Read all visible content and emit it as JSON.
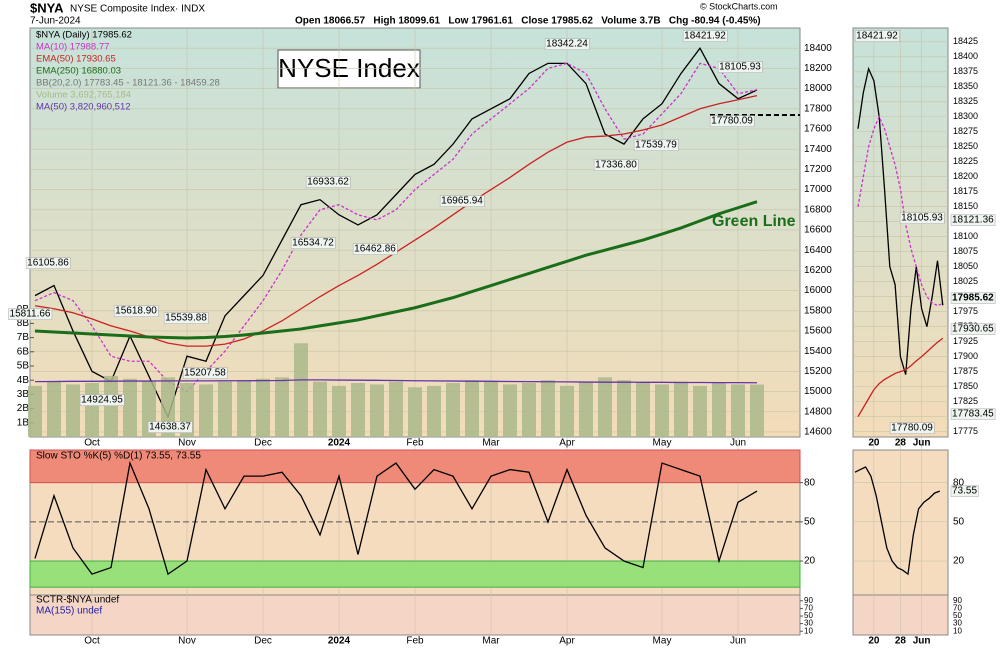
{
  "header": {
    "symbol": "$NYA",
    "name": "NYSE Composite Index· INDX",
    "date": "7-Jun-2024",
    "quote": "Open 18066.57   High 18099.61   Low 17961.61   Close 17985.62   Volume 3.7B   Chg -80.94 (-0.45%)",
    "source": "© StockCharts.com"
  },
  "chart_data": [
    {
      "type": "line",
      "title": "NYSE Index",
      "annotation": "Green Line",
      "bb_legend": "BB(20,2.0) 17783.45 - 18121.36 - 18459.28",
      "categories": [
        null,
        null,
        null,
        "Oct",
        null,
        null,
        null,
        null,
        "Nov",
        null,
        null,
        null,
        "Dec",
        null,
        null,
        null,
        "2024",
        null,
        null,
        null,
        "Feb",
        null,
        null,
        null,
        "Mar",
        null,
        null,
        null,
        "Apr",
        null,
        null,
        null,
        null,
        "May",
        null,
        null,
        null,
        "Jun",
        null
      ],
      "series": [
        {
          "name": "$NYA (Daily) 17985.62",
          "color": "#000000",
          "values": [
            15950,
            16050,
            15600,
            15200,
            15100,
            15550,
            15150,
            14750,
            15350,
            15300,
            15750,
            15950,
            16150,
            16500,
            16850,
            16900,
            16750,
            16650,
            16750,
            16950,
            17150,
            17250,
            17450,
            17700,
            17800,
            17900,
            18150,
            18250,
            18250,
            18050,
            17550,
            17450,
            17700,
            17850,
            18150,
            18400,
            18050,
            17900,
            17985.62
          ]
        },
        {
          "name": "MA(10) 17988.77",
          "color": "#cc33cc",
          "dash": true,
          "values": [
            15900,
            15980,
            15900,
            15650,
            15350,
            15300,
            15300,
            15100,
            15000,
            15200,
            15400,
            15650,
            15900,
            16200,
            16550,
            16800,
            16850,
            16750,
            16700,
            16800,
            17000,
            17150,
            17300,
            17550,
            17700,
            17850,
            18000,
            18200,
            18250,
            18150,
            17800,
            17500,
            17550,
            17750,
            17950,
            18250,
            18200,
            17950,
            17988.77
          ]
        },
        {
          "name": "EMA(50) 17930.65",
          "color": "#cc2222",
          "values": [
            15850,
            15820,
            15780,
            15720,
            15650,
            15600,
            15540,
            15480,
            15450,
            15450,
            15470,
            15520,
            15600,
            15700,
            15820,
            15940,
            16050,
            16150,
            16260,
            16380,
            16500,
            16620,
            16750,
            16880,
            17000,
            17120,
            17250,
            17370,
            17470,
            17520,
            17530,
            17550,
            17590,
            17640,
            17720,
            17800,
            17850,
            17890,
            17930.65
          ]
        },
        {
          "name": "EMA(250) 16880.03",
          "color": "#1a6e1a",
          "width": 3,
          "values": [
            15600,
            15590,
            15580,
            15570,
            15560,
            15550,
            15540,
            15535,
            15530,
            15535,
            15545,
            15560,
            15580,
            15600,
            15620,
            15650,
            15680,
            15710,
            15750,
            15790,
            15830,
            15880,
            15930,
            15990,
            16050,
            16110,
            16170,
            16230,
            16290,
            16350,
            16400,
            16450,
            16500,
            16560,
            16620,
            16690,
            16760,
            16820,
            16880.03
          ]
        },
        {
          "name": "Volume 3,692,765,184",
          "color": "#a9b98a",
          "type": "bar",
          "axis": "y2",
          "values": [
            3600000000,
            3900000000,
            3700000000,
            3800000000,
            4300000000,
            4100000000,
            3900000000,
            4200000000,
            3800000000,
            3700000000,
            3900000000,
            4000000000,
            4100000000,
            4200000000,
            6600000000,
            3900000000,
            3600000000,
            3800000000,
            3700000000,
            3900000000,
            3500000000,
            3600000000,
            3800000000,
            4000000000,
            3900000000,
            3700000000,
            3800000000,
            4000000000,
            3600000000,
            3900000000,
            4200000000,
            4000000000,
            3800000000,
            3700000000,
            3900000000,
            3600000000,
            3800000000,
            3700000000,
            3692765184
          ]
        },
        {
          "name": "MA(50) 3,820,960,512",
          "color": "#6633aa",
          "axis": "y2",
          "values": [
            3900000000,
            3910000000,
            3920000000,
            3920000000,
            3930000000,
            3940000000,
            3940000000,
            3950000000,
            3950000000,
            3950000000,
            3960000000,
            3960000000,
            3970000000,
            3980000000,
            4020000000,
            4020000000,
            4010000000,
            4000000000,
            3990000000,
            3980000000,
            3960000000,
            3950000000,
            3940000000,
            3930000000,
            3920000000,
            3910000000,
            3900000000,
            3890000000,
            3880000000,
            3870000000,
            3860000000,
            3860000000,
            3850000000,
            3850000000,
            3840000000,
            3840000000,
            3830000000,
            3830000000,
            3820960512
          ]
        }
      ],
      "annotations": [
        "16105.86",
        "15811.66",
        "15618.90",
        "14924.95",
        "15539.88",
        "15207.58",
        "14638.37",
        "16933.62",
        "16534.72",
        "16462.86",
        "16965.94",
        "18342.24",
        "17336.80",
        "17539.79",
        "18421.92",
        "18105.93",
        "17780.09"
      ],
      "ylim": [
        14550,
        18600
      ],
      "yticks": [
        14600,
        14800,
        15000,
        15200,
        15400,
        15600,
        15800,
        16000,
        16200,
        16400,
        16600,
        16800,
        17000,
        17200,
        17400,
        17600,
        17800,
        18000,
        18200,
        18400
      ],
      "y2lim": [
        0,
        28800000000
      ],
      "y2ticks": [
        {
          "value": 1000000000,
          "label": "1B"
        },
        {
          "value": 2000000000,
          "label": "2B"
        },
        {
          "value": 3000000000,
          "label": "3B"
        },
        {
          "value": 4000000000,
          "label": "4B"
        },
        {
          "value": 5000000000,
          "label": "5B"
        },
        {
          "value": 6000000000,
          "label": "6B"
        },
        {
          "value": 7000000000,
          "label": "7B"
        },
        {
          "value": 8000000000,
          "label": "8B"
        },
        {
          "value": 9000000000,
          "label": "9B"
        }
      ],
      "grid": true
    },
    {
      "type": "line",
      "series": [
        {
          "name": "Slow STO %K(5) %D(1) 73.55, 73.55",
          "color": "#000000",
          "values": [
            22,
            70,
            30,
            10,
            15,
            95,
            60,
            10,
            20,
            90,
            60,
            85,
            85,
            88,
            70,
            40,
            85,
            25,
            85,
            95,
            75,
            90,
            85,
            60,
            85,
            90,
            88,
            50,
            90,
            55,
            30,
            20,
            15,
            95,
            90,
            85,
            20,
            65,
            73.55
          ]
        }
      ],
      "ylim": [
        -6,
        105
      ],
      "yticks": [
        20,
        50,
        80
      ]
    },
    {
      "type": "line",
      "legend": [
        "SCTR-$NYA undef",
        "MA(155) undef"
      ],
      "ylim": [
        0,
        100
      ],
      "yticks": [
        10,
        30,
        50,
        70,
        90
      ]
    },
    {
      "type": "line",
      "categories": [
        null,
        null,
        null,
        "20",
        null,
        null,
        null,
        null,
        "28",
        null,
        null,
        null,
        "Jun",
        null,
        null,
        null,
        null
      ],
      "series": [
        {
          "name": "$NYA",
          "color": "#000000",
          "values": [
            18280,
            18340,
            18380,
            18360,
            18300,
            18180,
            18050,
            18020,
            17900,
            17870,
            17980,
            18050,
            17980,
            17950,
            18000,
            18060,
            17985.62
          ]
        },
        {
          "name": "MA(10)",
          "color": "#cc33cc",
          "dash": true,
          "values": [
            18150,
            18200,
            18250,
            18280,
            18300,
            18280,
            18250,
            18220,
            18180,
            18120,
            18080,
            18050,
            18020,
            18000,
            17990,
            17985,
            17988.77
          ]
        },
        {
          "name": "EMA(50)",
          "color": "#cc2222",
          "values": [
            17800,
            17815,
            17830,
            17845,
            17855,
            17862,
            17867,
            17872,
            17875,
            17878,
            17885,
            17893,
            17900,
            17908,
            17916,
            17924,
            17930.65
          ]
        }
      ],
      "annotations": [
        "18421.92",
        "18105.93",
        "17780.09"
      ],
      "tags": [
        "18121.36",
        "17985.62",
        "17930.65",
        "17783.45"
      ],
      "ylim": [
        17766,
        18448
      ],
      "yticks": [
        17775,
        17800,
        17825,
        17850,
        17875,
        17900,
        17925,
        17950,
        17975,
        18000,
        18025,
        18050,
        18075,
        18100,
        18125,
        18150,
        18175,
        18200,
        18225,
        18250,
        18275,
        18300,
        18325,
        18350,
        18375,
        18400,
        18425
      ]
    },
    {
      "type": "line",
      "series": [
        {
          "color": "#000000",
          "values": [
            88,
            90,
            92,
            85,
            70,
            50,
            30,
            20,
            15,
            13,
            10,
            40,
            60,
            65,
            68,
            72,
            73.55
          ],
          "value_labels": [
            null,
            null,
            null,
            null,
            null,
            null,
            null,
            null,
            null,
            null,
            null,
            null,
            null,
            null,
            null,
            null,
            "73.55"
          ]
        }
      ],
      "ylim": [
        -6,
        105
      ],
      "yticks": [
        20,
        50,
        80
      ]
    }
  ]
}
